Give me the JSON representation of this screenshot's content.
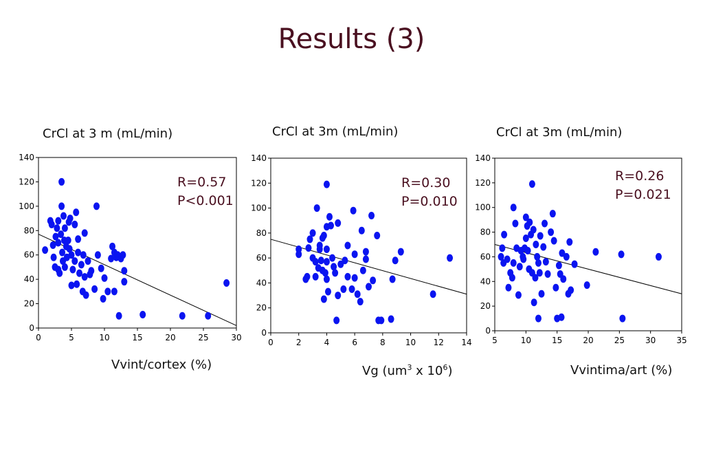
{
  "page": {
    "title": "Results (3)"
  },
  "chart_data": [
    {
      "type": "scatter",
      "ylabel": "CrCl at 3 m (mL/min)",
      "xlabel": "Vvint/cortex (%)",
      "xlabel_sup": [],
      "annotation": [
        "R=0.57",
        "P<0.001"
      ],
      "xlim": [
        0,
        30
      ],
      "ylim": [
        0,
        140
      ],
      "xticks": [
        0,
        5,
        10,
        15,
        20,
        25,
        30
      ],
      "yticks": [
        0,
        20,
        40,
        60,
        80,
        100,
        120,
        140
      ],
      "marker_color": "#0a14f0",
      "regression": {
        "x1": 0,
        "y1": 77,
        "x2": 30,
        "y2": 2
      },
      "points": [
        [
          1,
          64
        ],
        [
          1.8,
          88
        ],
        [
          2,
          85
        ],
        [
          2.2,
          68
        ],
        [
          2.3,
          58
        ],
        [
          2.5,
          50
        ],
        [
          2.6,
          75
        ],
        [
          2.8,
          82
        ],
        [
          3,
          88
        ],
        [
          3,
          70
        ],
        [
          3,
          48
        ],
        [
          3.2,
          45
        ],
        [
          3.4,
          77
        ],
        [
          3.5,
          120
        ],
        [
          3.5,
          100
        ],
        [
          3.6,
          62
        ],
        [
          3.7,
          55
        ],
        [
          3.8,
          92
        ],
        [
          3.9,
          72
        ],
        [
          4,
          50
        ],
        [
          4,
          82
        ],
        [
          4.2,
          67
        ],
        [
          4.3,
          58
        ],
        [
          4.5,
          72
        ],
        [
          4.6,
          87
        ],
        [
          4.7,
          65
        ],
        [
          4.8,
          90
        ],
        [
          5,
          35
        ],
        [
          5,
          60
        ],
        [
          5.2,
          48
        ],
        [
          5.5,
          85
        ],
        [
          5.5,
          55
        ],
        [
          5.7,
          95
        ],
        [
          5.8,
          36
        ],
        [
          6,
          73
        ],
        [
          6,
          62
        ],
        [
          6.2,
          45
        ],
        [
          6.5,
          52
        ],
        [
          6.7,
          30
        ],
        [
          6.8,
          60
        ],
        [
          7,
          78
        ],
        [
          7,
          42
        ],
        [
          7.2,
          27
        ],
        [
          7.5,
          55
        ],
        [
          7.8,
          44
        ],
        [
          8,
          47
        ],
        [
          8.5,
          32
        ],
        [
          8.8,
          100
        ],
        [
          9,
          60
        ],
        [
          9.5,
          49
        ],
        [
          9.8,
          24
        ],
        [
          10,
          41
        ],
        [
          10.5,
          30
        ],
        [
          11,
          57
        ],
        [
          11.2,
          67
        ],
        [
          11.5,
          62
        ],
        [
          11.5,
          30
        ],
        [
          11.8,
          58
        ],
        [
          12,
          60
        ],
        [
          12.2,
          10
        ],
        [
          12.5,
          57
        ],
        [
          12.8,
          60
        ],
        [
          13,
          38
        ],
        [
          13,
          47
        ],
        [
          15.8,
          11
        ],
        [
          21.8,
          10
        ],
        [
          25.7,
          10
        ],
        [
          28.5,
          37
        ]
      ]
    },
    {
      "type": "scatter",
      "ylabel": "CrCl at 3m (mL/min)",
      "xlabel": "Vg (um",
      "xlabel_sup": [
        "3",
        " x 10",
        "6",
        ")"
      ],
      "annotation": [
        "R=0.30",
        "P=0.010"
      ],
      "xlim": [
        0,
        14
      ],
      "ylim": [
        0,
        140
      ],
      "xticks": [
        0,
        2,
        4,
        6,
        8,
        10,
        12,
        14
      ],
      "yticks": [
        0,
        20,
        40,
        60,
        80,
        100,
        120,
        140
      ],
      "marker_color": "#0a14f0",
      "regression": {
        "x1": 0,
        "y1": 75,
        "x2": 14,
        "y2": 31
      },
      "points": [
        [
          2,
          63
        ],
        [
          2,
          67
        ],
        [
          2.5,
          43
        ],
        [
          2.6,
          45
        ],
        [
          2.7,
          68
        ],
        [
          2.8,
          75
        ],
        [
          3,
          80
        ],
        [
          3,
          60
        ],
        [
          3.2,
          45
        ],
        [
          3.2,
          57
        ],
        [
          3.3,
          100
        ],
        [
          3.4,
          52
        ],
        [
          3.5,
          70
        ],
        [
          3.5,
          67
        ],
        [
          3.6,
          58
        ],
        [
          3.7,
          76
        ],
        [
          3.7,
          50
        ],
        [
          3.8,
          27
        ],
        [
          3.8,
          78
        ],
        [
          3.9,
          48
        ],
        [
          4,
          119
        ],
        [
          4,
          85
        ],
        [
          4,
          67
        ],
        [
          4,
          57
        ],
        [
          4,
          43
        ],
        [
          4.1,
          33
        ],
        [
          4.2,
          93
        ],
        [
          4.3,
          86
        ],
        [
          4.4,
          60
        ],
        [
          4.5,
          53
        ],
        [
          4.6,
          48
        ],
        [
          4.7,
          10
        ],
        [
          4.8,
          88
        ],
        [
          4.8,
          30
        ],
        [
          5,
          55
        ],
        [
          5.2,
          35
        ],
        [
          5.3,
          58
        ],
        [
          5.5,
          70
        ],
        [
          5.5,
          45
        ],
        [
          5.8,
          35
        ],
        [
          5.9,
          98
        ],
        [
          6,
          63
        ],
        [
          6,
          44
        ],
        [
          6.2,
          31
        ],
        [
          6.4,
          25
        ],
        [
          6.5,
          82
        ],
        [
          6.6,
          50
        ],
        [
          6.8,
          65
        ],
        [
          6.8,
          59
        ],
        [
          7,
          37
        ],
        [
          7.2,
          94
        ],
        [
          7.3,
          42
        ],
        [
          7.6,
          78
        ],
        [
          7.7,
          10
        ],
        [
          7.9,
          10
        ],
        [
          8.6,
          11
        ],
        [
          8.7,
          43
        ],
        [
          8.9,
          58
        ],
        [
          9.3,
          65
        ],
        [
          11.6,
          31
        ],
        [
          12.8,
          60
        ]
      ]
    },
    {
      "type": "scatter",
      "ylabel": "CrCl at 3m (mL/min)",
      "xlabel": "Vvintima/art (%)",
      "xlabel_sup": [],
      "annotation": [
        "R=0.26",
        "P=0.021"
      ],
      "xlim": [
        5,
        35
      ],
      "ylim": [
        0,
        140
      ],
      "xticks": [
        5,
        10,
        15,
        20,
        25,
        30,
        35
      ],
      "yticks": [
        0,
        20,
        40,
        60,
        80,
        100,
        120,
        140
      ],
      "marker_color": "#0a14f0",
      "regression": {
        "x1": 5,
        "y1": 70,
        "x2": 35,
        "y2": 30
      },
      "points": [
        [
          6,
          60
        ],
        [
          6.2,
          67
        ],
        [
          6.4,
          55
        ],
        [
          6.5,
          78
        ],
        [
          7,
          58
        ],
        [
          7.2,
          35
        ],
        [
          7.5,
          47
        ],
        [
          7.8,
          43
        ],
        [
          8,
          100
        ],
        [
          8,
          55
        ],
        [
          8.3,
          87
        ],
        [
          8.5,
          67
        ],
        [
          8.8,
          29
        ],
        [
          9,
          52
        ],
        [
          9.2,
          65
        ],
        [
          9.5,
          60
        ],
        [
          9.6,
          58
        ],
        [
          9.8,
          67
        ],
        [
          10,
          92
        ],
        [
          10,
          75
        ],
        [
          10.2,
          85
        ],
        [
          10.3,
          65
        ],
        [
          10.5,
          50
        ],
        [
          10.6,
          88
        ],
        [
          10.8,
          78
        ],
        [
          11,
          119
        ],
        [
          11,
          47
        ],
        [
          11.2,
          82
        ],
        [
          11.3,
          23
        ],
        [
          11.5,
          43
        ],
        [
          11.6,
          70
        ],
        [
          11.8,
          60
        ],
        [
          12,
          10
        ],
        [
          12,
          55
        ],
        [
          12.2,
          47
        ],
        [
          12.3,
          77
        ],
        [
          12.5,
          30
        ],
        [
          12.8,
          68
        ],
        [
          13,
          87
        ],
        [
          13.2,
          56
        ],
        [
          13.5,
          46
        ],
        [
          14,
          80
        ],
        [
          14.3,
          95
        ],
        [
          14.5,
          73
        ],
        [
          14.8,
          35
        ],
        [
          15,
          10
        ],
        [
          15.3,
          53
        ],
        [
          15.5,
          46
        ],
        [
          15.7,
          11
        ],
        [
          15.8,
          63
        ],
        [
          16,
          42
        ],
        [
          16.5,
          60
        ],
        [
          16.8,
          30
        ],
        [
          17,
          72
        ],
        [
          17.2,
          33
        ],
        [
          17.8,
          54
        ],
        [
          19.8,
          37
        ],
        [
          21.2,
          64
        ],
        [
          25.3,
          62
        ],
        [
          25.5,
          10
        ],
        [
          31.3,
          60
        ]
      ]
    }
  ]
}
